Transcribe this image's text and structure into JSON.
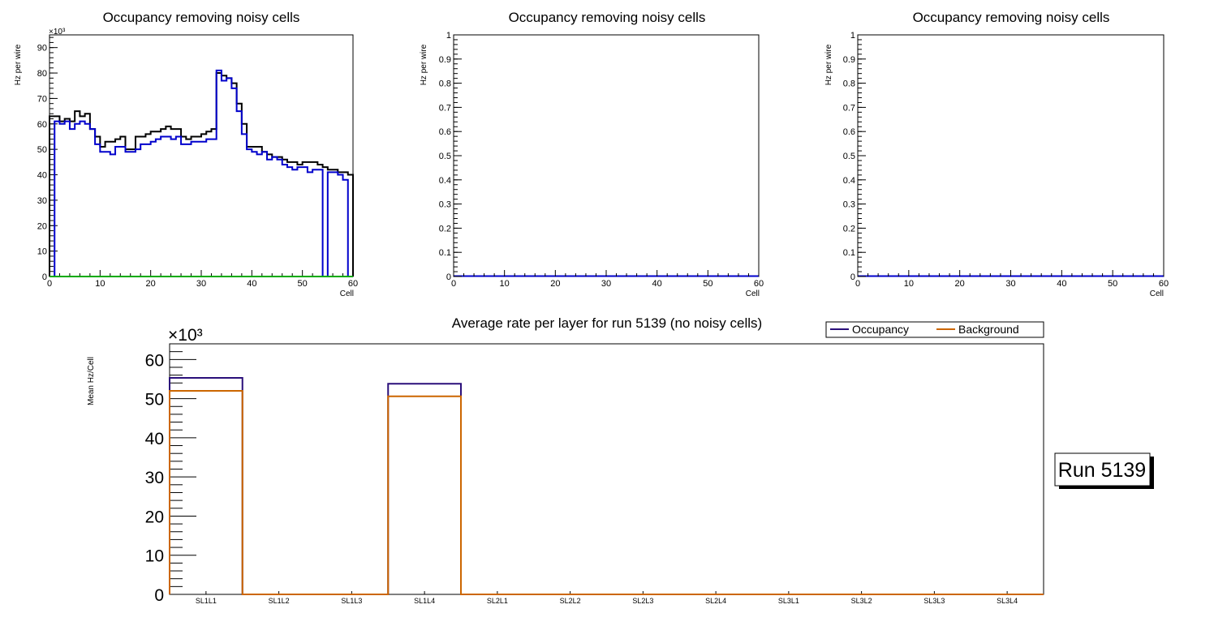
{
  "chart_data": [
    {
      "type": "step-histogram",
      "title": "Occupancy removing noisy cells",
      "xlabel": "Cell",
      "ylabel": "Hz per wire",
      "y_exponent_label": "×10³",
      "xlim": [
        0,
        60
      ],
      "ylim": [
        0,
        95
      ],
      "xticks": [
        0,
        10,
        20,
        30,
        40,
        50,
        60
      ],
      "yticks": [
        0,
        10,
        20,
        30,
        40,
        50,
        60,
        70,
        80,
        90
      ],
      "bin_edges_start": 0,
      "bin_width": 1,
      "series": [
        {
          "name": "black",
          "color": "#000000",
          "values": [
            63,
            63,
            61,
            62,
            61,
            65,
            63,
            64,
            58,
            55,
            51,
            53,
            53,
            54,
            55,
            50,
            50,
            55,
            55,
            56,
            57,
            57,
            58,
            59,
            58,
            58,
            55,
            54,
            55,
            55,
            56,
            57,
            58,
            80,
            79,
            78,
            76,
            68,
            60,
            51,
            51,
            51,
            49,
            48,
            47,
            47,
            46,
            45,
            45,
            44,
            45,
            45,
            45,
            44,
            43,
            42,
            42,
            41,
            41,
            40
          ]
        },
        {
          "name": "blue",
          "color": "#0000cc",
          "values": [
            0,
            61,
            60,
            61,
            58,
            60,
            61,
            60,
            58,
            52,
            49,
            49,
            48,
            51,
            51,
            49,
            49,
            50,
            52,
            52,
            53,
            54,
            55,
            55,
            54,
            55,
            52,
            52,
            53,
            53,
            53,
            54,
            54,
            81,
            77,
            78,
            74,
            65,
            56,
            50,
            49,
            48,
            49,
            46,
            47,
            46,
            44,
            43,
            42,
            43,
            43,
            41,
            42,
            42,
            0,
            41,
            41,
            40,
            38,
            0
          ]
        },
        {
          "name": "green",
          "color": "#00aa00",
          "values": [
            0,
            0,
            0,
            0,
            0,
            0,
            0,
            0,
            0,
            0,
            0,
            0,
            0,
            0,
            0,
            0,
            0,
            0,
            0,
            0,
            0,
            0,
            0,
            0,
            0,
            0,
            0,
            0,
            0,
            0,
            0,
            0,
            0,
            0,
            0,
            0,
            0,
            0,
            0,
            0,
            0,
            0,
            0,
            0,
            0,
            0,
            0,
            0,
            0,
            0,
            0,
            0,
            0,
            0,
            0,
            0,
            0,
            0,
            0,
            0
          ]
        }
      ]
    },
    {
      "type": "step-histogram",
      "title": "Occupancy removing noisy cells",
      "xlabel": "Cell",
      "ylabel": "Hz per wire",
      "xlim": [
        0,
        60
      ],
      "ylim": [
        0,
        1
      ],
      "xticks": [
        0,
        10,
        20,
        30,
        40,
        50,
        60
      ],
      "yticks": [
        "0",
        "0.1",
        "0.2",
        "0.3",
        "0.4",
        "0.5",
        "0.6",
        "0.7",
        "0.8",
        "0.9",
        "1"
      ],
      "series": [
        {
          "name": "blue",
          "color": "#0000cc",
          "values": []
        }
      ]
    },
    {
      "type": "step-histogram",
      "title": "Occupancy removing noisy cells",
      "xlabel": "Cell",
      "ylabel": "Hz per wire",
      "xlim": [
        0,
        60
      ],
      "ylim": [
        0,
        1
      ],
      "xticks": [
        0,
        10,
        20,
        30,
        40,
        50,
        60
      ],
      "yticks": [
        "0",
        "0.1",
        "0.2",
        "0.3",
        "0.4",
        "0.5",
        "0.6",
        "0.7",
        "0.8",
        "0.9",
        "1"
      ],
      "series": [
        {
          "name": "blue",
          "color": "#0000cc",
          "values": []
        }
      ]
    },
    {
      "type": "bar-step",
      "title": "Average rate per layer for run 5139 (no noisy cells)",
      "ylabel": "Mean Hz/Cell",
      "y_exponent_label": "×10³",
      "ylim": [
        0,
        64
      ],
      "yticks": [
        0,
        10,
        20,
        30,
        40,
        50,
        60
      ],
      "categories": [
        "SL1L1",
        "SL1L2",
        "SL1L3",
        "SL1L4",
        "SL2L1",
        "SL2L2",
        "SL2L3",
        "SL2L4",
        "SL3L1",
        "SL3L2",
        "SL3L3",
        "SL3L4"
      ],
      "series": [
        {
          "name": "Occupancy",
          "color": "#2a0f7a",
          "values": [
            55.3,
            0,
            0,
            53.8,
            0,
            0,
            0,
            0,
            0,
            0,
            0,
            0
          ]
        },
        {
          "name": "Background",
          "color": "#cc6600",
          "values": [
            52.0,
            0,
            0,
            50.6,
            0,
            0,
            0,
            0,
            0,
            0,
            0,
            0
          ]
        }
      ],
      "legend": {
        "placement": "top-right",
        "entries": [
          "Occupancy",
          "Background"
        ]
      }
    }
  ],
  "run_label": "Run 5139"
}
